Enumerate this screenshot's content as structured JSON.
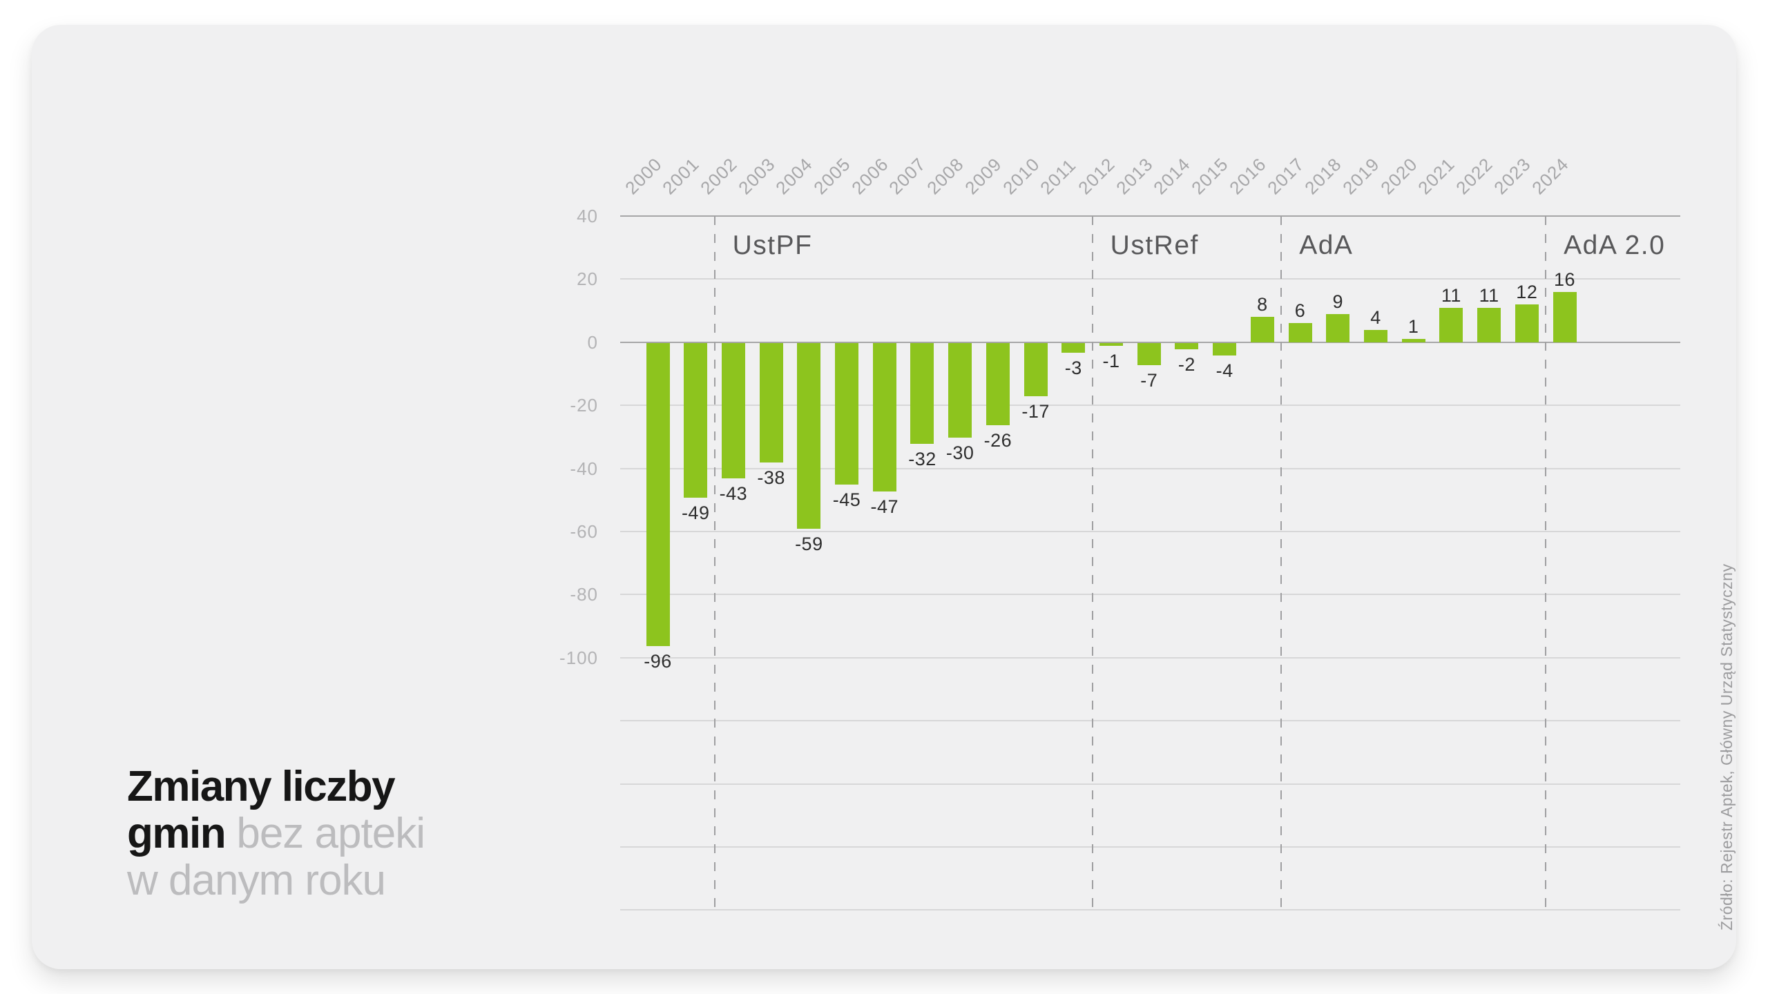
{
  "title": {
    "bold_line1": "Zmiany liczby",
    "bold_word2": "gmin",
    "light_part2": "bez apteki",
    "light_line3": "w danym roku"
  },
  "source": {
    "text": "Źródło: Rejestr Aptek, Główny Urząd Statystyczny"
  },
  "colors": {
    "bar_green": "#8dc41e",
    "card_background": "#f0f0f1",
    "page_background": "#ffffff",
    "title_black": "#161616",
    "title_gray": "#bcbcbe",
    "axis_gray": "#a6a6a7",
    "gridline_gray": "#d7d7d8"
  },
  "chart_data": {
    "type": "bar",
    "title": "Zmiany liczby gmin bez apteki w danym roku",
    "xlabel": "",
    "ylabel": "",
    "categories": [
      2000,
      2001,
      2002,
      2003,
      2004,
      2005,
      2006,
      2007,
      2008,
      2009,
      2010,
      2011,
      2012,
      2013,
      2014,
      2015,
      2016,
      2017,
      2018,
      2019,
      2020,
      2021,
      2022,
      2023,
      2024
    ],
    "values": [
      -96,
      -49,
      -43,
      -38,
      -59,
      -45,
      -47,
      -32,
      -30,
      -26,
      -17,
      -3,
      -1,
      -7,
      -2,
      -4,
      8,
      6,
      9,
      4,
      1,
      11,
      11,
      12,
      16
    ],
    "bar_color": "#8dc41e",
    "grid": true,
    "legend_position": "none",
    "y_axis": {
      "tick_labels": [
        "40",
        "20",
        "0",
        "-20",
        "-40",
        "-60",
        "-80",
        "-100"
      ],
      "tick_values": [
        40,
        20,
        0,
        -20,
        -40,
        -60,
        -80,
        -100
      ],
      "labeled_range": [
        -100,
        40
      ],
      "grid_bottom_value": -180,
      "grid_step": 20
    },
    "regions": [
      {
        "label": "UstPF",
        "start": 2002,
        "end": 2011
      },
      {
        "label": "UstRef",
        "start": 2012,
        "end": 2016
      },
      {
        "label": "AdA",
        "start": 2017,
        "end": 2023
      },
      {
        "label": "AdA 2.0",
        "start": 2024,
        "end": 2024
      }
    ]
  }
}
